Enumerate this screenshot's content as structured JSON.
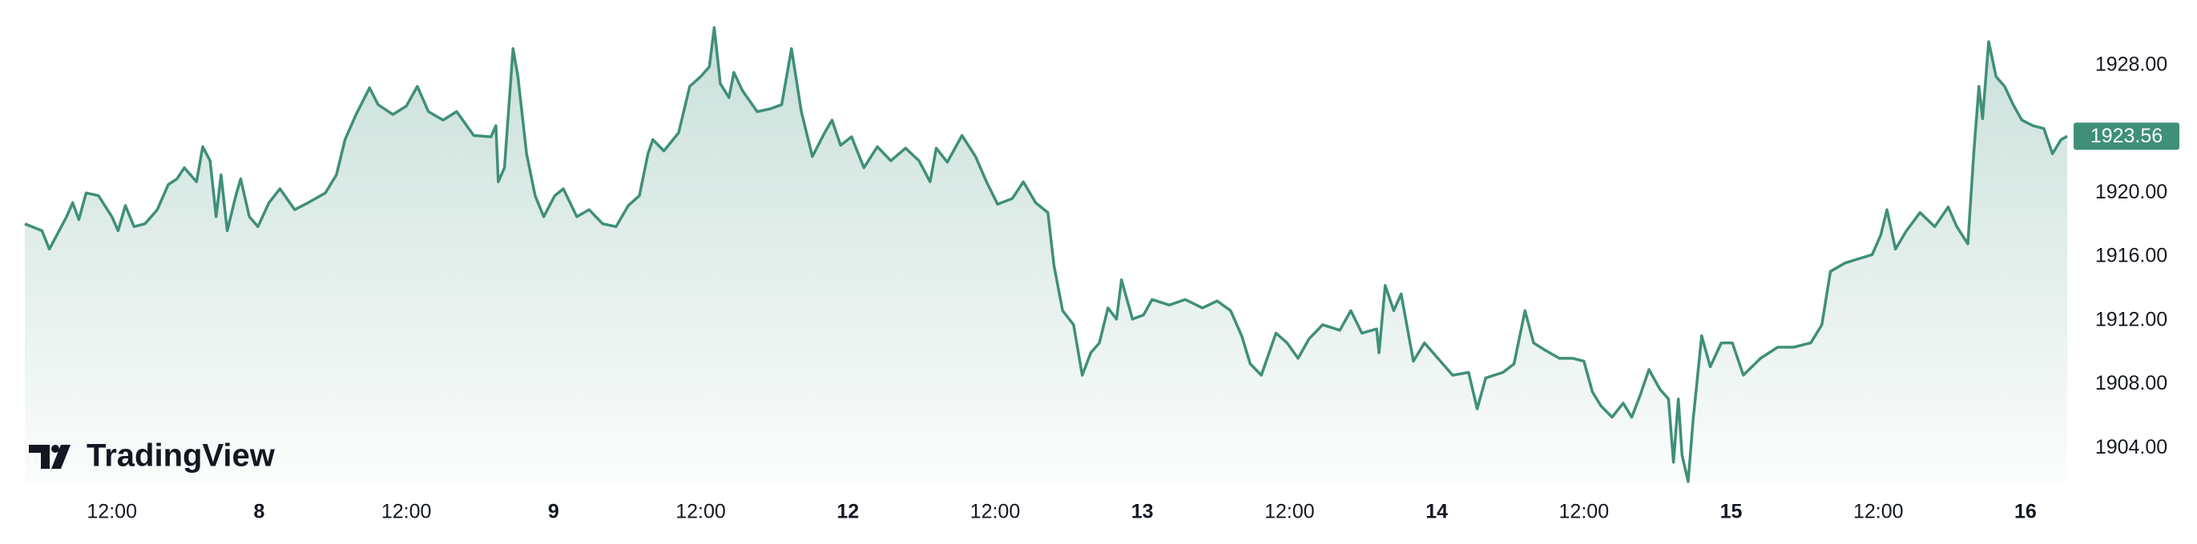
{
  "chart_data": {
    "type": "area",
    "watermark": "TradingView",
    "color": "#3f8f79",
    "last_value": 1923.56,
    "xlim": [
      4.9,
      171.4
    ],
    "ylim": [
      1901.8,
      1932.1
    ],
    "xticks": [
      {
        "value": 12,
        "label": "12:00"
      },
      {
        "value": 24,
        "label": "8"
      },
      {
        "value": 36,
        "label": "12:00"
      },
      {
        "value": 48,
        "label": "9"
      },
      {
        "value": 60,
        "label": "12:00"
      },
      {
        "value": 72,
        "label": "12"
      },
      {
        "value": 84,
        "label": "12:00"
      },
      {
        "value": 96,
        "label": "13"
      },
      {
        "value": 108,
        "label": "12:00"
      },
      {
        "value": 120,
        "label": "14"
      },
      {
        "value": 132,
        "label": "12:00"
      },
      {
        "value": 144,
        "label": "15"
      },
      {
        "value": 156,
        "label": "12:00"
      },
      {
        "value": 168,
        "label": "16"
      }
    ],
    "yticks": [
      {
        "value": 1904,
        "label": "1904.00"
      },
      {
        "value": 1908,
        "label": "1908.00"
      },
      {
        "value": 1912,
        "label": "1912.00"
      },
      {
        "value": 1916,
        "label": "1916.00"
      },
      {
        "value": 1920,
        "label": "1920.00"
      },
      {
        "value": 1928,
        "label": "1928.00"
      }
    ],
    "x": [
      4.9,
      6.3,
      6.9,
      8.3,
      8.8,
      9.3,
      9.9,
      10.9,
      12.0,
      12.5,
      13.1,
      13.8,
      14.7,
      15.7,
      16.6,
      17.3,
      17.9,
      18.9,
      19.4,
      20.0,
      20.5,
      20.9,
      21.4,
      22.1,
      22.5,
      23.2,
      23.9,
      24.8,
      25.7,
      26.9,
      28.0,
      29.4,
      30.3,
      31.0,
      31.9,
      33.0,
      33.7,
      34.9,
      36.0,
      36.9,
      37.8,
      39.0,
      40.1,
      41.5,
      42.9,
      43.3,
      43.5,
      44.0,
      44.7,
      45.1,
      45.8,
      46.5,
      47.2,
      48.1,
      48.8,
      49.9,
      50.9,
      52.0,
      53.1,
      54.1,
      55.0,
      55.7,
      56.1,
      57.0,
      58.2,
      59.1,
      60.0,
      60.7,
      61.1,
      61.6,
      62.3,
      62.7,
      63.4,
      64.6,
      65.7,
      66.6,
      67.4,
      68.2,
      69.1,
      70.1,
      70.7,
      71.4,
      72.3,
      73.3,
      74.4,
      75.5,
      76.7,
      77.8,
      78.7,
      79.2,
      80.1,
      81.3,
      82.4,
      83.3,
      84.2,
      85.4,
      86.3,
      87.3,
      88.3,
      88.8,
      89.5,
      90.4,
      91.1,
      91.8,
      92.5,
      93.2,
      93.9,
      94.3,
      95.2,
      96.1,
      96.8,
      98.2,
      99.5,
      100.9,
      102.1,
      103.2,
      104.1,
      104.8,
      105.7,
      106.9,
      107.8,
      108.7,
      109.6,
      110.7,
      112.1,
      113.0,
      113.9,
      115.1,
      115.3,
      115.8,
      116.5,
      117.1,
      118.1,
      119.0,
      120.1,
      121.3,
      122.6,
      123.3,
      124.0,
      125.4,
      126.3,
      127.2,
      127.9,
      128.8,
      130.0,
      131.1,
      132.0,
      132.7,
      133.4,
      134.3,
      135.2,
      135.9,
      136.6,
      137.3,
      138.2,
      138.9,
      139.3,
      139.7,
      140.0,
      140.5,
      140.9,
      141.6,
      142.3,
      143.2,
      144.1,
      145.0,
      146.4,
      147.8,
      149.1,
      150.5,
      151.4,
      152.1,
      153.3,
      154.4,
      155.5,
      156.2,
      156.7,
      157.4,
      158.3,
      159.4,
      160.6,
      161.7,
      162.4,
      163.3,
      163.8,
      164.2,
      164.5,
      165.0,
      165.6,
      166.3,
      167.0,
      167.7,
      168.6,
      169.5,
      170.2,
      170.9,
      171.4
    ],
    "values": [
      1918.07,
      1917.63,
      1916.48,
      1918.51,
      1919.39,
      1918.33,
      1920.0,
      1919.83,
      1918.51,
      1917.63,
      1919.21,
      1917.89,
      1918.07,
      1918.95,
      1920.53,
      1920.88,
      1921.58,
      1920.7,
      1922.9,
      1922.02,
      1918.51,
      1921.14,
      1917.63,
      1919.83,
      1920.88,
      1918.51,
      1917.89,
      1919.39,
      1920.26,
      1918.95,
      1919.39,
      1920.0,
      1921.14,
      1923.34,
      1924.92,
      1926.59,
      1925.54,
      1924.92,
      1925.45,
      1926.68,
      1925.1,
      1924.57,
      1925.1,
      1923.6,
      1923.52,
      1924.22,
      1920.7,
      1921.58,
      1929.05,
      1927.3,
      1922.46,
      1919.83,
      1918.51,
      1919.83,
      1920.26,
      1918.51,
      1918.95,
      1918.07,
      1917.89,
      1919.21,
      1919.83,
      1922.46,
      1923.34,
      1922.64,
      1923.78,
      1926.68,
      1927.3,
      1927.91,
      1930.37,
      1926.86,
      1925.98,
      1927.56,
      1926.42,
      1925.1,
      1925.28,
      1925.54,
      1929.05,
      1925.1,
      1922.29,
      1923.78,
      1924.57,
      1922.99,
      1923.52,
      1921.58,
      1922.9,
      1922.02,
      1922.81,
      1922.02,
      1920.7,
      1922.81,
      1921.93,
      1923.6,
      1922.29,
      1920.7,
      1919.3,
      1919.65,
      1920.7,
      1919.39,
      1918.77,
      1915.43,
      1912.62,
      1911.74,
      1908.57,
      1909.98,
      1910.6,
      1912.79,
      1912.09,
      1914.55,
      1912.09,
      1912.35,
      1913.32,
      1912.97,
      1913.32,
      1912.79,
      1913.23,
      1912.62,
      1911.04,
      1909.28,
      1908.57,
      1911.21,
      1910.6,
      1909.63,
      1910.86,
      1911.74,
      1911.39,
      1912.62,
      1911.21,
      1911.47,
      1909.98,
      1914.2,
      1912.62,
      1913.67,
      1909.45,
      1910.6,
      1909.63,
      1908.57,
      1908.75,
      1906.46,
      1908.4,
      1908.75,
      1909.28,
      1912.62,
      1910.6,
      1910.16,
      1909.63,
      1909.63,
      1909.45,
      1907.52,
      1906.64,
      1905.94,
      1906.82,
      1905.94,
      1907.34,
      1908.93,
      1907.69,
      1907.08,
      1903.12,
      1907.08,
      1903.56,
      1901.9,
      1905.76,
      1911.04,
      1909.1,
      1910.6,
      1910.6,
      1908.57,
      1909.63,
      1910.33,
      1910.33,
      1910.6,
      1911.74,
      1915.08,
      1915.61,
      1915.87,
      1916.13,
      1917.36,
      1918.95,
      1916.48,
      1917.63,
      1918.77,
      1917.89,
      1919.12,
      1917.89,
      1916.81,
      1922.64,
      1926.68,
      1924.66,
      1929.49,
      1927.3,
      1926.68,
      1925.54,
      1924.57,
      1924.22,
      1924.04,
      1922.46,
      1923.34,
      1923.56
    ]
  }
}
